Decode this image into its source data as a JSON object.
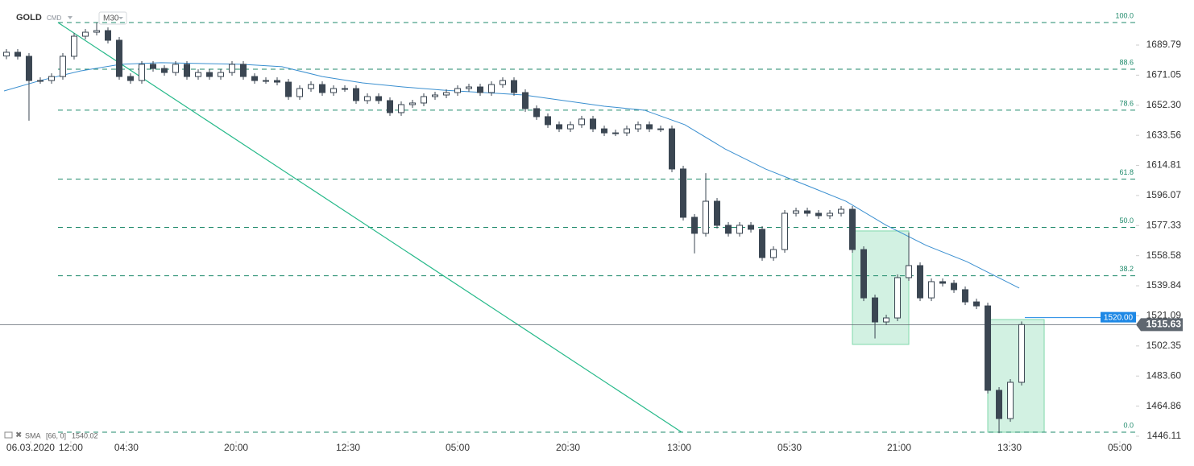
{
  "chart_data": {
    "type": "candlestick",
    "symbol": "GOLD",
    "market": "CMD",
    "timeframe": "M30",
    "xlim": [
      -0.57,
      100.14
    ],
    "xticks": [
      {
        "value": 2.14,
        "label": "06.03.2020"
      },
      {
        "value": 5.71,
        "label": "12:00"
      },
      {
        "value": 10.64,
        "label": "04:30"
      },
      {
        "value": 20.36,
        "label": "20:00"
      },
      {
        "value": 30.29,
        "label": "12:30"
      },
      {
        "value": 40.0,
        "label": "05:00"
      },
      {
        "value": 49.79,
        "label": "20:30"
      },
      {
        "value": 59.64,
        "label": "13:00"
      },
      {
        "value": 69.43,
        "label": "05:30"
      },
      {
        "value": 79.14,
        "label": "21:00"
      },
      {
        "value": 88.93,
        "label": "13:30"
      },
      {
        "value": 98.71,
        "label": "05:00"
      }
    ],
    "ylim": [
      1443.1,
      1717.87
    ],
    "yticks": [
      1689.79,
      1671.05,
      {
        "value": 1652.3,
        "label": "1652.30"
      },
      1633.56,
      1614.81,
      1596.07,
      1577.33,
      1558.58,
      1539.84,
      1521.09,
      1502.35,
      {
        "value": 1483.6,
        "label": "1483.60"
      },
      1464.86,
      1446.11
    ],
    "up_color": "#ffffff",
    "down_color": "#3b4652",
    "open": [
      1683.0,
      1685.3,
      1682.8,
      1667.7,
      1667.7,
      1670.2,
      1682.8,
      1695.3,
      1697.8,
      1698.8,
      1692.8,
      1670.2,
      1667.7,
      1677.8,
      1675.2,
      1672.7,
      1677.8,
      1670.2,
      1672.7,
      1670.2,
      1672.7,
      1677.8,
      1670.2,
      1667.7,
      1667.7,
      1666.7,
      1657.7,
      1662.7,
      1665.2,
      1660.2,
      1662.7,
      1662.7,
      1655.2,
      1657.7,
      1655.2,
      1647.7,
      1652.7,
      1653.7,
      1657.7,
      1658.7,
      1660.2,
      1662.7,
      1663.7,
      1660.2,
      1665.2,
      1667.7,
      1660.2,
      1650.2,
      1645.2,
      1640.2,
      1637.6,
      1640.2,
      1643.7,
      1637.6,
      1635.1,
      1635.1,
      1637.6,
      1640.2,
      1637.6,
      1637.6,
      1612.6,
      1582.5,
      1572.5,
      1592.5,
      1577.5,
      1572.5,
      1577.5,
      1575.0,
      1557.4,
      1562.4,
      1585.0,
      1586.5,
      1585.0,
      1583.5,
      1585.0,
      1587.5,
      1562.4,
      1532.3,
      1517.3,
      1519.8,
      1544.9,
      1552.4,
      1532.3,
      1542.4,
      1541.4,
      1537.4,
      1529.8,
      1527.3,
      1474.7,
      1457.1,
      1479.7
    ],
    "high": [
      1687.3,
      1687.3,
      1684.8,
      1669.7,
      1672.2,
      1684.8,
      1697.3,
      1699.8,
      1703.8,
      1700.8,
      1694.8,
      1672.2,
      1679.8,
      1679.8,
      1677.2,
      1679.8,
      1679.8,
      1674.7,
      1674.7,
      1674.7,
      1679.8,
      1679.8,
      1672.2,
      1669.7,
      1669.7,
      1668.7,
      1664.7,
      1667.2,
      1667.2,
      1664.7,
      1664.7,
      1664.7,
      1659.7,
      1659.7,
      1657.2,
      1654.7,
      1655.7,
      1659.7,
      1660.7,
      1662.2,
      1664.7,
      1665.7,
      1665.7,
      1667.2,
      1669.7,
      1669.7,
      1662.2,
      1652.2,
      1647.2,
      1642.2,
      1642.2,
      1645.7,
      1645.7,
      1639.6,
      1637.1,
      1639.6,
      1642.2,
      1642.2,
      1639.6,
      1639.6,
      1614.6,
      1584.5,
      1610.0,
      1594.5,
      1579.5,
      1579.5,
      1579.5,
      1577.0,
      1564.4,
      1587.0,
      1588.5,
      1588.5,
      1587.0,
      1587.0,
      1589.5,
      1589.5,
      1564.4,
      1534.3,
      1521.8,
      1546.9,
      1573.0,
      1554.4,
      1544.4,
      1544.4,
      1543.4,
      1539.4,
      1531.8,
      1529.3,
      1476.7,
      1481.7,
      1517.6
    ],
    "low": [
      1681.0,
      1680.8,
      1642.7,
      1665.7,
      1665.7,
      1668.2,
      1680.8,
      1693.3,
      1695.8,
      1690.8,
      1668.2,
      1665.7,
      1665.7,
      1673.2,
      1670.7,
      1670.7,
      1668.2,
      1668.2,
      1668.2,
      1668.2,
      1670.7,
      1668.2,
      1665.7,
      1665.7,
      1664.7,
      1655.7,
      1655.7,
      1660.7,
      1658.2,
      1658.2,
      1660.7,
      1653.2,
      1653.2,
      1653.2,
      1645.7,
      1645.7,
      1650.7,
      1651.7,
      1655.7,
      1656.7,
      1658.2,
      1660.7,
      1658.2,
      1658.2,
      1663.2,
      1658.2,
      1648.2,
      1643.2,
      1638.2,
      1635.6,
      1635.6,
      1638.2,
      1635.6,
      1633.1,
      1633.1,
      1633.1,
      1635.6,
      1635.6,
      1635.6,
      1610.6,
      1580.5,
      1560.0,
      1570.5,
      1575.5,
      1570.5,
      1570.5,
      1573.0,
      1555.4,
      1555.4,
      1560.4,
      1583.0,
      1583.0,
      1581.5,
      1581.5,
      1583.0,
      1560.4,
      1530.3,
      1507.0,
      1515.3,
      1517.8,
      1542.9,
      1530.3,
      1530.3,
      1539.4,
      1535.4,
      1527.8,
      1525.3,
      1472.7,
      1448.0,
      1455.1,
      1477.7
    ],
    "close": [
      1685.3,
      1682.8,
      1667.7,
      1667.7,
      1670.2,
      1682.8,
      1695.3,
      1697.8,
      1698.8,
      1692.8,
      1670.2,
      1667.7,
      1677.8,
      1675.2,
      1672.7,
      1677.8,
      1670.2,
      1672.7,
      1670.2,
      1672.7,
      1677.8,
      1670.2,
      1667.7,
      1667.7,
      1666.7,
      1657.7,
      1662.7,
      1665.2,
      1660.2,
      1662.7,
      1662.7,
      1655.2,
      1657.7,
      1655.2,
      1647.7,
      1652.7,
      1653.7,
      1657.7,
      1658.7,
      1660.2,
      1662.7,
      1663.7,
      1660.2,
      1665.2,
      1667.7,
      1660.2,
      1650.2,
      1645.2,
      1640.2,
      1637.6,
      1640.2,
      1643.7,
      1637.6,
      1635.1,
      1635.1,
      1637.6,
      1640.2,
      1637.6,
      1637.6,
      1612.6,
      1582.5,
      1572.5,
      1592.5,
      1577.5,
      1572.5,
      1577.5,
      1575.0,
      1557.4,
      1562.4,
      1585.0,
      1586.5,
      1585.0,
      1583.5,
      1585.0,
      1587.5,
      1562.4,
      1532.3,
      1517.3,
      1519.8,
      1544.9,
      1552.4,
      1532.3,
      1542.4,
      1541.4,
      1537.4,
      1529.8,
      1527.3,
      1474.7,
      1457.1,
      1479.7,
      1515.63
    ],
    "sma": {
      "name": "SMA",
      "params": "[66, 0]",
      "last": 1540.02,
      "color": "#3a8fd0",
      "x": [
        -0.21,
        3.0,
        6.57,
        10.14,
        13.71,
        20.86,
        24.43,
        28.0,
        31.57,
        35.14,
        38.71,
        42.29,
        45.86,
        49.43,
        53.0,
        56.57,
        60.14,
        63.71,
        67.29,
        70.86,
        74.43,
        78.0,
        81.57,
        85.14,
        89.79
      ],
      "values": [
        1661.2,
        1667.7,
        1673.7,
        1677.8,
        1678.8,
        1677.8,
        1676.3,
        1670.2,
        1666.2,
        1663.7,
        1661.7,
        1660.2,
        1658.7,
        1655.2,
        1651.7,
        1649.2,
        1640.2,
        1625.1,
        1612.6,
        1602.6,
        1592.5,
        1577.5,
        1564.9,
        1554.9,
        1538.4
      ]
    },
    "fibonacci": {
      "color": "#1f8a6b",
      "start": 4.57,
      "high": 1703.83,
      "low": 1448.6,
      "levels": [
        {
          "value": 100,
          "label": "100.0"
        },
        88.6,
        78.6,
        61.8,
        {
          "value": 50,
          "label": "50.0"
        },
        38.2,
        {
          "value": 0,
          "label": "0.0"
        }
      ]
    },
    "trendline": {
      "color": "#27b98a",
      "x": [
        4.57,
        59.86
      ],
      "values": [
        1703.8,
        1448.6
      ]
    },
    "boxes": [
      {
        "x": [
          75.0,
          80.0
        ],
        "values": [
          1574.0,
          1503.3
        ]
      },
      {
        "x": [
          87.0,
          92.0
        ],
        "values": [
          1518.8,
          1448.6
        ]
      }
    ],
    "box_color": "#7fd8ab",
    "price_marker": {
      "value": 1520,
      "label": "1520.00",
      "color": "#1e88e5"
    },
    "last_color": "#5f6770"
  }
}
